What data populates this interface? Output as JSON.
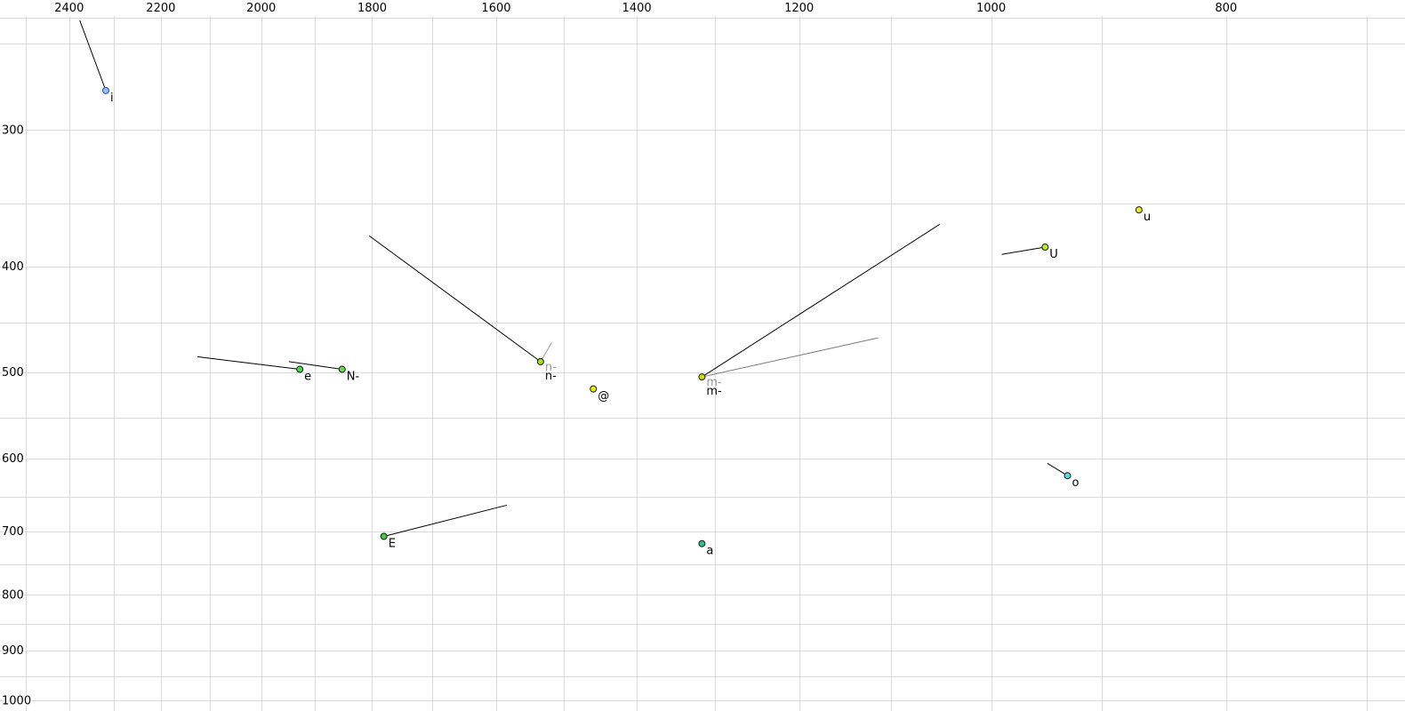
{
  "chart_data": {
    "type": "scatter",
    "title": "",
    "xlabel": "",
    "ylabel": "",
    "legend": "none",
    "grid": true,
    "grid_color": "#d9d9d9",
    "axis_text_color": "#000000",
    "x_axis": {
      "unit": "Hz",
      "scale": "log",
      "reversed": true,
      "left_edge": 2563,
      "right_edge": 675,
      "tick_values": [
        2400,
        2200,
        2000,
        1800,
        1600,
        1400,
        1200,
        1000,
        800
      ],
      "tick_labels": [
        "2400",
        "2200",
        "2000",
        "1800",
        "1600",
        "1400",
        "1200",
        "1000",
        "800"
      ],
      "grid_values": [
        2500,
        2400,
        2300,
        2200,
        2100,
        2000,
        1900,
        1800,
        1700,
        1600,
        1500,
        1400,
        1300,
        1200,
        1100,
        1000,
        900,
        800,
        700
      ]
    },
    "y_axis": {
      "unit": "Hz",
      "scale": "log",
      "top_edge": 228,
      "bottom_edge": 1022,
      "tick_values": [
        300,
        400,
        500,
        600,
        700,
        800,
        900,
        1000
      ],
      "tick_labels": [
        "300",
        "400",
        "500",
        "600",
        "700",
        "800",
        "900",
        "1000"
      ],
      "grid_values": [
        250,
        300,
        350,
        400,
        450,
        500,
        550,
        600,
        650,
        700,
        750,
        800,
        850,
        900,
        950,
        1000
      ]
    },
    "points": [
      {
        "label": "i",
        "f2": 2318,
        "f1": 276,
        "color": "#99bbee",
        "stroke": "#2255bb",
        "tails": [
          {
            "f2": 2376,
            "f1": 238,
            "color": "#000000",
            "width": 1
          }
        ]
      },
      {
        "label": "e",
        "f2": 1928,
        "f1": 497,
        "color": "#44dd44",
        "stroke": "#1a1a1a",
        "tails": [
          {
            "f2": 2125,
            "f1": 484,
            "color": "#000000",
            "width": 1
          }
        ]
      },
      {
        "label": "N-",
        "f2": 1852,
        "f1": 497,
        "color": "#66dd44",
        "stroke": "#1a1a1a",
        "tails": [
          {
            "f2": 1948,
            "f1": 489,
            "color": "#000000",
            "width": 1
          }
        ]
      },
      {
        "label": "n-",
        "ghost_label": "n-",
        "f2": 1534,
        "f1": 489,
        "color": "#aadd22",
        "stroke": "#1a1a1a",
        "tails": [
          {
            "f2": 1805,
            "f1": 375,
            "color": "#000000",
            "width": 1
          },
          {
            "f2": 1518,
            "f1": 470,
            "color": "#999999",
            "width": 1
          }
        ]
      },
      {
        "label": "@",
        "f2": 1459,
        "f1": 518,
        "color": "#eeee00",
        "stroke": "#1a1a1a",
        "tails": []
      },
      {
        "label": "m-",
        "ghost_label": "m-",
        "f2": 1316,
        "f1": 505,
        "color": "#ccdd00",
        "stroke": "#1a1a1a",
        "tails": [
          {
            "f2": 1050,
            "f1": 366,
            "color": "#000000",
            "width": 1
          },
          {
            "f2": 1113,
            "f1": 465,
            "color": "#777777",
            "width": 1
          }
        ]
      },
      {
        "label": "E",
        "f2": 1780,
        "f1": 707,
        "color": "#44cc44",
        "stroke": "#1a1a1a",
        "tails": [
          {
            "f2": 1584,
            "f1": 662,
            "color": "#000000",
            "width": 1
          }
        ]
      },
      {
        "label": "a",
        "f2": 1316,
        "f1": 718,
        "color": "#33bb88",
        "stroke": "#1a1a1a",
        "tails": []
      },
      {
        "label": "o",
        "f2": 930,
        "f1": 622,
        "color": "#55dddd",
        "stroke": "#1a1a1a",
        "tails": [
          {
            "f2": 948,
            "f1": 606,
            "color": "#000000",
            "width": 1
          }
        ]
      },
      {
        "label": "U",
        "f2": 950,
        "f1": 384,
        "color": "#bbee22",
        "stroke": "#1a1a1a",
        "tails": [
          {
            "f2": 990,
            "f1": 390,
            "color": "#000000",
            "width": 1
          }
        ]
      },
      {
        "label": "u",
        "f2": 869,
        "f1": 355,
        "color": "#eeee22",
        "stroke": "#1a1a1a",
        "tails": []
      }
    ]
  }
}
